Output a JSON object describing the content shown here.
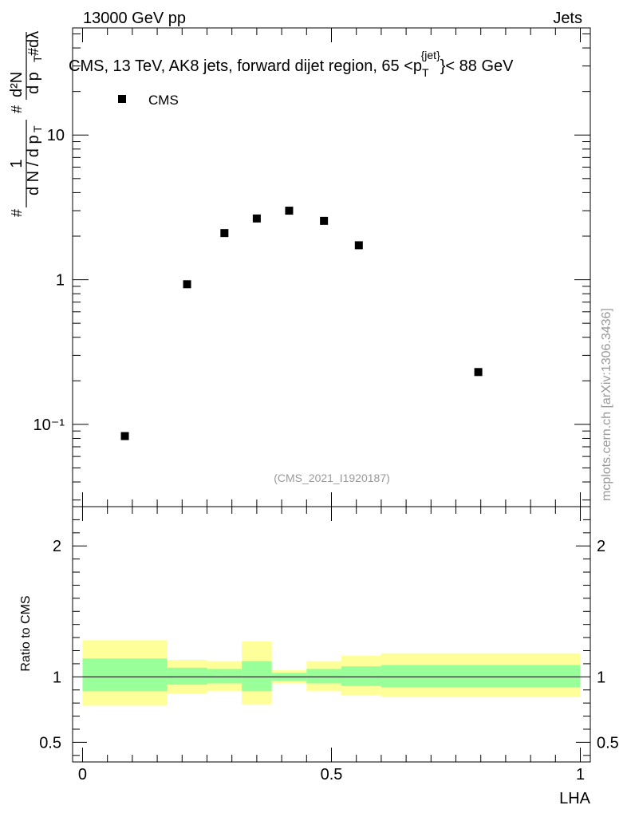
{
  "header": {
    "energy_label": "13000 GeV pp",
    "category_label": "Jets"
  },
  "plot_title": {
    "main": "CMS, 13 TeV, AK8 jets, forward dijet region, 65 <p",
    "sub": "T",
    "sup": "{jet}",
    "tail": "}< 88 GeV"
  },
  "y_axis_title": {
    "hash_left": "#",
    "one": "1",
    "dN": "d N / d p",
    "T": "T",
    "hash_mid": "#",
    "d2N": "d²N",
    "dp": "d p",
    "hash_right": "#",
    "dlambda": "dλ"
  },
  "watermark": "mcplots.cern.ch [arXiv:1306.3436]",
  "analysis_id": "(CMS_2021_I1920187)",
  "ratio_ylabel": "Ratio to CMS",
  "x_axis_label": "LHA",
  "colors": {
    "marker": "#000000",
    "band_inner": "#99ff99",
    "band_outer": "#ffff99",
    "axis": "#000000"
  },
  "chart_data": [
    {
      "type": "scatter",
      "log_y": true,
      "legend": [
        {
          "name": "CMS",
          "marker": "square"
        }
      ],
      "legend_position": "top-left",
      "xlim": [
        -0.02,
        1.02
      ],
      "ylim": [
        0.027,
        55
      ],
      "y_tick_labels": [
        "10⁻¹",
        "1",
        "10"
      ],
      "y_tick_values": [
        0.1,
        1,
        10
      ],
      "series": [
        {
          "name": "CMS",
          "x": [
            0.085,
            0.21,
            0.285,
            0.35,
            0.415,
            0.485,
            0.555,
            0.795
          ],
          "y": [
            0.083,
            0.93,
            2.1,
            2.65,
            3.0,
            2.55,
            1.73,
            0.23
          ]
        }
      ]
    },
    {
      "type": "area",
      "xlim": [
        -0.02,
        1.02
      ],
      "ylim": [
        0.35,
        2.3
      ],
      "x_tick_labels": [
        "0",
        "0.5",
        "1"
      ],
      "x_tick_values": [
        0,
        0.5,
        1
      ],
      "y_tick_labels": [
        "0.5",
        "1",
        "2"
      ],
      "y_tick_values": [
        0.5,
        1,
        2
      ],
      "reference_line": 1,
      "bins": [
        {
          "x_low": 0.0,
          "x_high": 0.17,
          "inner_low": 0.89,
          "inner_high": 1.14,
          "outer_low": 0.78,
          "outer_high": 1.28
        },
        {
          "x_low": 0.17,
          "x_high": 0.25,
          "inner_low": 0.94,
          "inner_high": 1.07,
          "outer_low": 0.87,
          "outer_high": 1.13
        },
        {
          "x_low": 0.25,
          "x_high": 0.32,
          "inner_low": 0.95,
          "inner_high": 1.06,
          "outer_low": 0.89,
          "outer_high": 1.12
        },
        {
          "x_low": 0.32,
          "x_high": 0.38,
          "inner_low": 0.89,
          "inner_high": 1.12,
          "outer_low": 0.79,
          "outer_high": 1.27
        },
        {
          "x_low": 0.38,
          "x_high": 0.45,
          "inner_low": 0.97,
          "inner_high": 1.03,
          "outer_low": 0.95,
          "outer_high": 1.05
        },
        {
          "x_low": 0.45,
          "x_high": 0.52,
          "inner_low": 0.95,
          "inner_high": 1.06,
          "outer_low": 0.89,
          "outer_high": 1.12
        },
        {
          "x_low": 0.52,
          "x_high": 0.6,
          "inner_low": 0.93,
          "inner_high": 1.08,
          "outer_low": 0.86,
          "outer_high": 1.16
        },
        {
          "x_low": 0.6,
          "x_high": 1.0,
          "inner_low": 0.92,
          "inner_high": 1.09,
          "outer_low": 0.85,
          "outer_high": 1.18
        }
      ]
    }
  ]
}
